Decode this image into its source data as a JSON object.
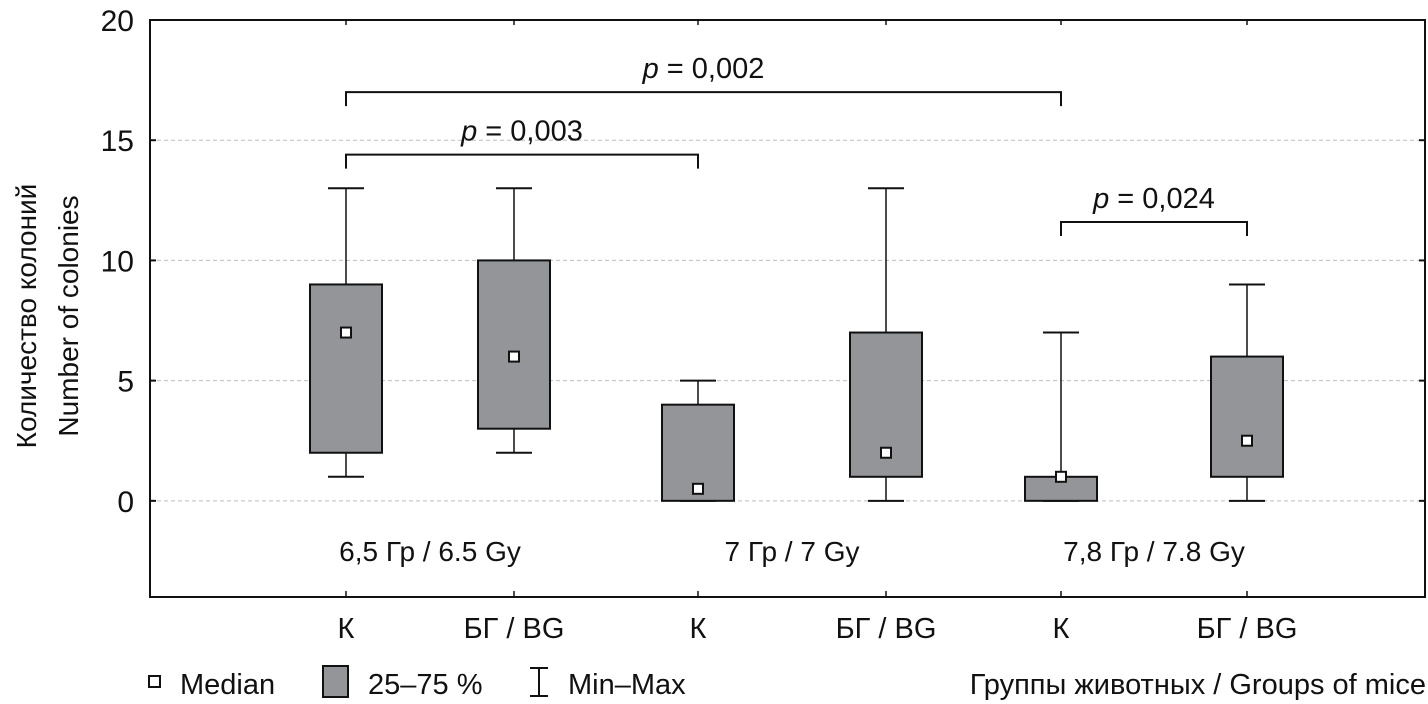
{
  "chart_data": {
    "type": "boxplot",
    "title": "",
    "ylabel_lines": [
      "Количество колоний",
      "Number of colonies"
    ],
    "xlabel": "Группы животных / Groups of mice",
    "ylim": [
      -4,
      20
    ],
    "yticks": [
      0,
      5,
      10,
      15,
      20
    ],
    "ytick_labels": [
      "0",
      "5",
      "10",
      "15",
      "20"
    ],
    "grid": "horizontal dashed",
    "categories": [
      "К",
      "БГ / BG",
      "К",
      "БГ / BG",
      "К",
      "БГ / BG"
    ],
    "dose_groups": [
      {
        "label": "6,5 Гр / 6.5 Gy",
        "categories": [
          0,
          1
        ]
      },
      {
        "label": "7 Гр / 7 Gy",
        "categories": [
          2,
          3
        ]
      },
      {
        "label": "7,8 Гр / 7.8 Gy",
        "categories": [
          4,
          5
        ]
      }
    ],
    "series": [
      {
        "name": "6.5 Gy К",
        "min": 1,
        "q1": 2,
        "median": 7,
        "q3": 9,
        "max": 13
      },
      {
        "name": "6.5 Gy BG",
        "min": 2,
        "q1": 3,
        "median": 6,
        "q3": 10,
        "max": 13
      },
      {
        "name": "7 Gy К",
        "min": 0,
        "q1": 0,
        "median": 0.5,
        "q3": 4,
        "max": 5
      },
      {
        "name": "7 Gy BG",
        "min": 0,
        "q1": 1,
        "median": 2,
        "q3": 7,
        "max": 13
      },
      {
        "name": "7.8 Gy К",
        "min": 0,
        "q1": 0,
        "median": 1,
        "q3": 1,
        "max": 7
      },
      {
        "name": "7.8 Gy BG",
        "min": 0,
        "q1": 1,
        "median": 2.5,
        "q3": 6,
        "max": 9
      }
    ],
    "annotations": [
      {
        "text_p": "p",
        "text_rest": " = 0,002",
        "from": 0,
        "to": 4,
        "y": 17
      },
      {
        "text_p": "p",
        "text_rest": " = 0,003",
        "from": 0,
        "to": 2,
        "y": 14.4
      },
      {
        "text_p": "p",
        "text_rest": " = 0,024",
        "from": 4,
        "to": 5,
        "y": 11.6
      }
    ],
    "legend": {
      "position": "bottom-left",
      "entries": [
        {
          "symbol": "median-marker",
          "label": "Median"
        },
        {
          "symbol": "box",
          "label": "25–75 %"
        },
        {
          "symbol": "whisker",
          "label": "Min–Max"
        }
      ]
    },
    "colors": {
      "box_fill": "#939598",
      "stroke": "#111111",
      "median_fill": "#ffffff",
      "grid": "#bdbdbd"
    }
  }
}
